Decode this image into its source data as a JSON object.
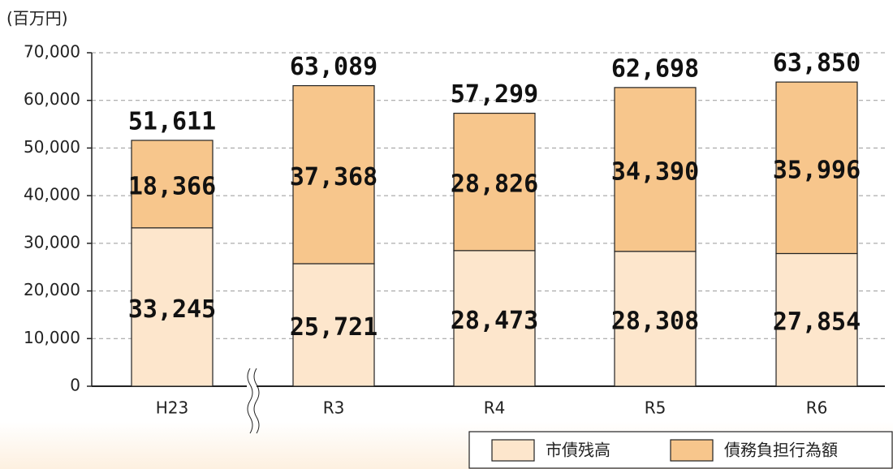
{
  "chart_data": {
    "type": "stacked_bar",
    "unit_label": "(百万円)",
    "categories": [
      "H23",
      "R3",
      "R4",
      "R5",
      "R6"
    ],
    "series": [
      {
        "name": "市債残高",
        "color": "#fde6cc",
        "values": [
          33245,
          25721,
          28473,
          28308,
          27854
        ],
        "value_labels": [
          "33,245",
          "25,721",
          "28,473",
          "28,308",
          "27,854"
        ]
      },
      {
        "name": "債務負担行為額",
        "color": "#f7c68c",
        "values": [
          18366,
          37368,
          28826,
          34390,
          35996
        ],
        "value_labels": [
          "18,366",
          "37,368",
          "28,826",
          "34,390",
          "35,996"
        ]
      }
    ],
    "totals": [
      51611,
      63089,
      57299,
      62698,
      63850
    ],
    "total_labels": [
      "51,611",
      "63,089",
      "57,299",
      "62,698",
      "63,850"
    ],
    "ylim": [
      0,
      70000
    ],
    "yticks": [
      0,
      {
        "value": 10000,
        "label": "10,000"
      },
      {
        "value": 20000,
        "label": "20,000"
      },
      {
        "value": 30000,
        "label": "30,000"
      },
      {
        "value": 40000,
        "label": "40,000"
      },
      {
        "value": 50000,
        "label": "50,000"
      },
      {
        "value": 60000,
        "label": "60,000"
      },
      {
        "value": 70000,
        "label": "70,000"
      }
    ],
    "grid": true,
    "legend": "bottom-right"
  }
}
